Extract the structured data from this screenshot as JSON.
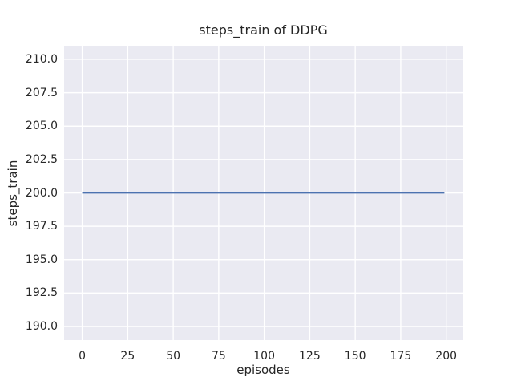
{
  "chart_data": {
    "type": "line",
    "title": "steps_train of DDPG",
    "xlabel": "episodes",
    "ylabel": "steps_train",
    "series": [
      {
        "name": "steps_train",
        "color": "#4C72B0",
        "x": [
          0,
          199
        ],
        "y": [
          200,
          200
        ],
        "description": "constant value 200 for every episode from 0 to 199"
      }
    ],
    "xticks": [
      0,
      25,
      50,
      75,
      100,
      125,
      150,
      175,
      200
    ],
    "ytick_labels": [
      "210.0",
      "207.5",
      "205.0",
      "202.5",
      "200.0",
      "197.5",
      "195.0",
      "192.5",
      "190.0"
    ],
    "xlim": [
      -9.95,
      208.95
    ],
    "ylim": [
      188.98,
      211.02
    ],
    "grid": true,
    "legend": false,
    "plot_background": "#EAEAF2",
    "grid_color": "#FFFFFF",
    "text_color": "#262626"
  }
}
